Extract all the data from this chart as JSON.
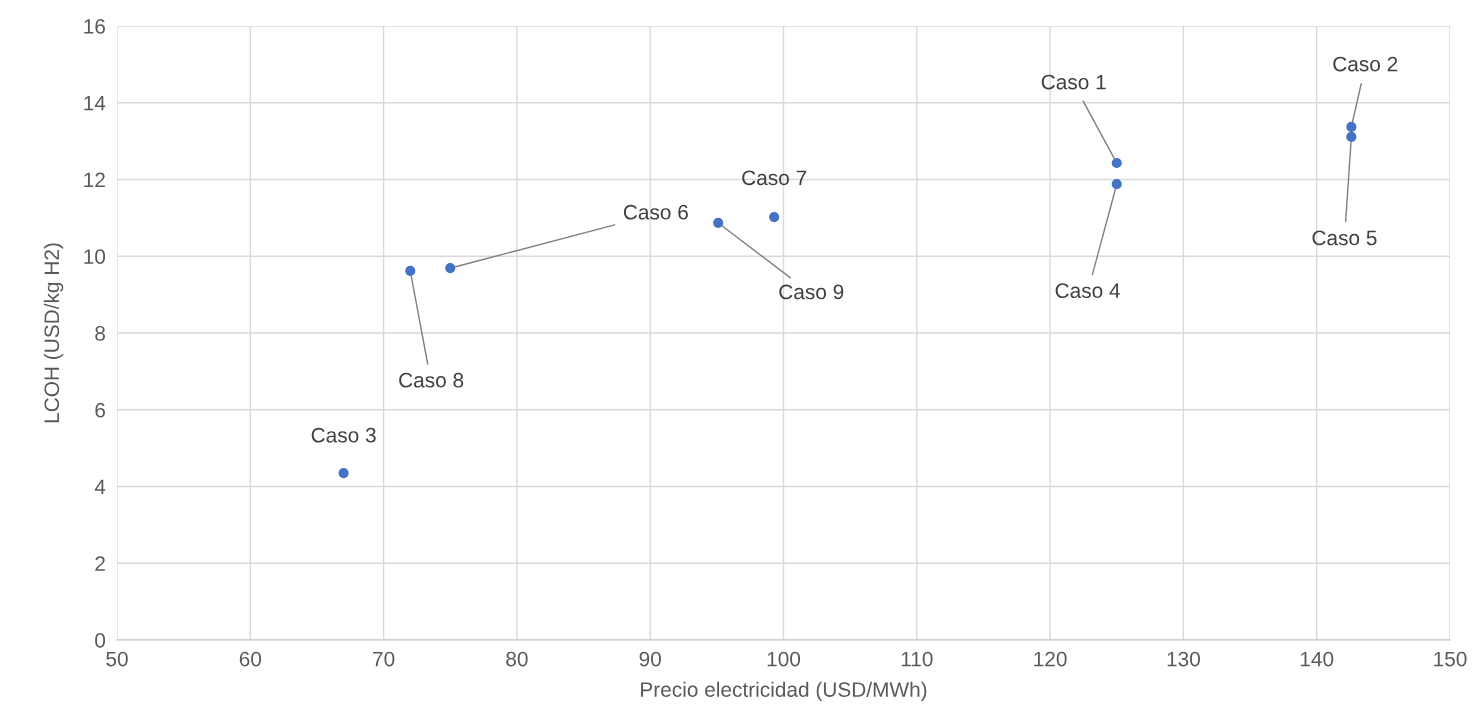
{
  "chart_data": {
    "type": "scatter",
    "xlabel": "Precio electricidad (USD/MWh)",
    "ylabel": "LCOH (USD/kg H2)",
    "x": [
      125,
      142.6,
      67,
      125,
      142.6,
      75,
      99.3,
      72,
      95.1
    ],
    "series": [
      {
        "color": "#4472c4",
        "values": [
          12.43,
          13.37,
          4.35,
          11.88,
          13.11,
          9.69,
          11.02,
          9.62,
          10.87
        ]
      }
    ],
    "xlim": [
      50,
      150
    ],
    "xticks": [
      50,
      60,
      70,
      80,
      90,
      100,
      110,
      120,
      130,
      140,
      150
    ],
    "ylim": [
      0,
      16
    ],
    "yticks": [
      0,
      2,
      4,
      6,
      8,
      10,
      12,
      14,
      16
    ],
    "grid": true,
    "marker": "circle",
    "annotations": [
      {
        "text": "Caso 1",
        "x": 125,
        "y": 12.43
      },
      {
        "text": "Caso 2",
        "x": 142.6,
        "y": 13.37
      },
      {
        "text": "Caso 3",
        "x": 67,
        "y": 4.35
      },
      {
        "text": "Caso 4",
        "x": 125,
        "y": 11.88
      },
      {
        "text": "Caso 5",
        "x": 142.6,
        "y": 13.11
      },
      {
        "text": "Caso 6",
        "x": 75,
        "y": 9.69
      },
      {
        "text": "Caso 7",
        "x": 99.3,
        "y": 11.02
      },
      {
        "text": "Caso 8",
        "x": 72,
        "y": 9.62
      },
      {
        "text": "Caso 9",
        "x": 95.1,
        "y": 10.87
      }
    ]
  }
}
